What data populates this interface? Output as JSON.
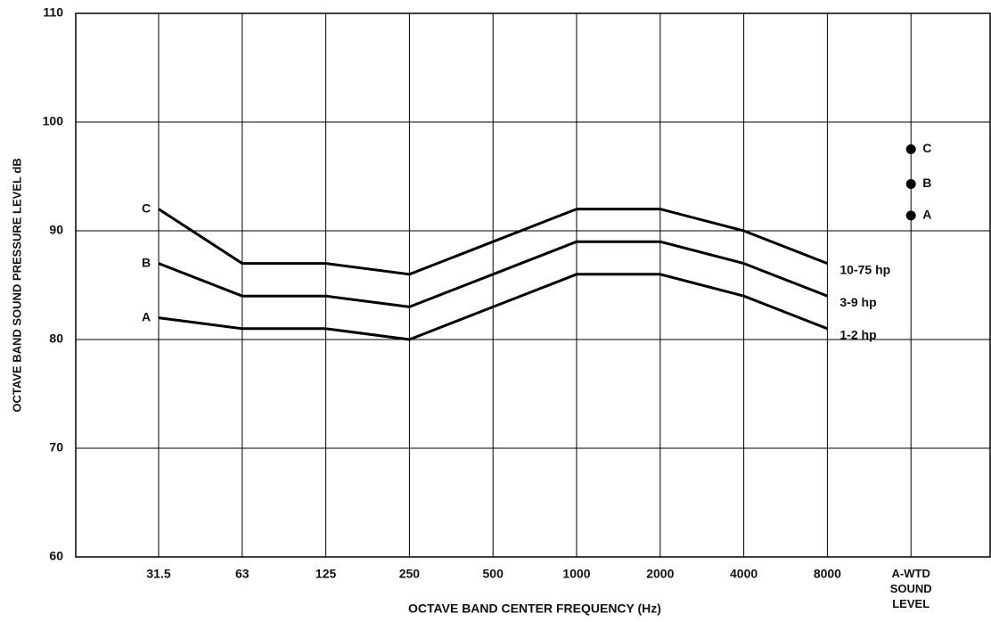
{
  "chart_data": {
    "type": "line",
    "x_label": "OCTAVE BAND CENTER FREQUENCY (Hz)",
    "y_label": "OCTAVE BAND SOUND PRESSURE LEVEL dB",
    "categories": [
      "31.5",
      "63",
      "125",
      "250",
      "500",
      "1000",
      "2000",
      "4000",
      "8000"
    ],
    "point_category": "A-WTD SOUND LEVEL",
    "series": [
      {
        "name": "10-75 hp",
        "letter": "C",
        "color": "#000000",
        "values": [
          92,
          87,
          87,
          86,
          89,
          92,
          92,
          90,
          87
        ],
        "a_weighted_level": 97.5
      },
      {
        "name": "3-9 hp",
        "letter": "B",
        "color": "#000000",
        "values": [
          87,
          84,
          84,
          83,
          86,
          89,
          89,
          87,
          84
        ],
        "a_weighted_level": 94.3
      },
      {
        "name": "1-2 hp",
        "letter": "A",
        "color": "#000000",
        "values": [
          82,
          81,
          81,
          80,
          83,
          86,
          86,
          84,
          81
        ],
        "a_weighted_level": 91.4
      }
    ],
    "ylim": [
      60,
      110
    ],
    "yticks": [
      60,
      70,
      80,
      90,
      100,
      110
    ],
    "grid": true
  }
}
